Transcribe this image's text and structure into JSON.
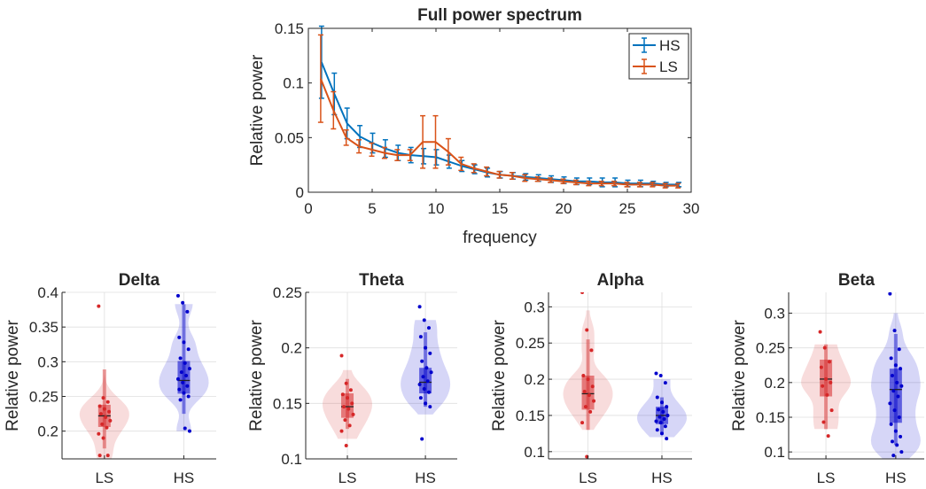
{
  "chart_data": [
    {
      "type": "line",
      "title": "Full power spectrum",
      "xlabel": "frequency",
      "ylabel": "Relative power",
      "xlim": [
        0,
        30
      ],
      "ylim": [
        0,
        0.15
      ],
      "xticks": [
        "0",
        "5",
        "10",
        "15",
        "20",
        "25",
        "30"
      ],
      "yticks": [
        "0",
        "0.05",
        "0.1",
        "0.15"
      ],
      "grid": false,
      "legend": "top-right",
      "x": [
        1,
        2,
        3,
        4,
        5,
        6,
        7,
        8,
        9,
        10,
        11,
        12,
        13,
        14,
        15,
        16,
        17,
        18,
        19,
        20,
        21,
        22,
        23,
        24,
        25,
        26,
        27,
        28,
        29
      ],
      "series": [
        {
          "name": "HS",
          "color": "#0072BD",
          "values": [
            0.119,
            0.09,
            0.063,
            0.051,
            0.045,
            0.04,
            0.036,
            0.034,
            0.033,
            0.032,
            0.028,
            0.024,
            0.021,
            0.018,
            0.016,
            0.015,
            0.014,
            0.013,
            0.012,
            0.011,
            0.01,
            0.01,
            0.009,
            0.009,
            0.008,
            0.008,
            0.008,
            0.007,
            0.007
          ],
          "errors": [
            0.033,
            0.019,
            0.014,
            0.01,
            0.009,
            0.008,
            0.007,
            0.007,
            0.007,
            0.007,
            0.006,
            0.005,
            0.004,
            0.004,
            0.003,
            0.003,
            0.003,
            0.003,
            0.003,
            0.003,
            0.003,
            0.003,
            0.004,
            0.004,
            0.003,
            0.003,
            0.002,
            0.002,
            0.002
          ]
        },
        {
          "name": "LS",
          "color": "#D95319",
          "values": [
            0.104,
            0.075,
            0.05,
            0.042,
            0.039,
            0.036,
            0.034,
            0.034,
            0.046,
            0.046,
            0.037,
            0.026,
            0.022,
            0.019,
            0.016,
            0.015,
            0.013,
            0.012,
            0.011,
            0.01,
            0.009,
            0.008,
            0.008,
            0.008,
            0.007,
            0.007,
            0.007,
            0.006,
            0.006
          ],
          "errors": [
            0.04,
            0.017,
            0.007,
            0.006,
            0.006,
            0.005,
            0.005,
            0.005,
            0.024,
            0.024,
            0.012,
            0.006,
            0.004,
            0.004,
            0.003,
            0.003,
            0.003,
            0.002,
            0.002,
            0.002,
            0.002,
            0.002,
            0.002,
            0.002,
            0.002,
            0.002,
            0.002,
            0.002,
            0.002
          ]
        }
      ]
    },
    {
      "type": "violin",
      "title": "Delta",
      "ylabel": "Relative power",
      "categories": [
        "LS",
        "HS"
      ],
      "ylim": [
        0.16,
        0.4
      ],
      "yticks": [
        "0.2",
        "0.25",
        "0.3",
        "0.35",
        "0.4"
      ],
      "grid": true,
      "groups": [
        {
          "name": "LS",
          "color": "#D62728",
          "median": 0.222,
          "q1": 0.206,
          "q3": 0.238,
          "whisker_low": 0.175,
          "whisker_high": 0.289,
          "kde_low": 0.16,
          "kde_high": 0.29,
          "points": [
            0.38,
            0.248,
            0.242,
            0.236,
            0.232,
            0.228,
            0.225,
            0.22,
            0.215,
            0.21,
            0.205,
            0.196,
            0.19,
            0.165,
            0.165
          ]
        },
        {
          "name": "HS",
          "color": "#0000CC",
          "median": 0.273,
          "q1": 0.254,
          "q3": 0.301,
          "whisker_low": 0.225,
          "whisker_high": 0.383,
          "kde_low": 0.2,
          "kde_high": 0.383,
          "points": [
            0.395,
            0.385,
            0.372,
            0.335,
            0.328,
            0.318,
            0.305,
            0.298,
            0.29,
            0.285,
            0.28,
            0.275,
            0.27,
            0.265,
            0.26,
            0.255,
            0.25,
            0.245,
            0.204,
            0.2
          ]
        }
      ]
    },
    {
      "type": "violin",
      "title": "Theta",
      "ylabel": "Relative power",
      "categories": [
        "LS",
        "HS"
      ],
      "ylim": [
        0.1,
        0.25
      ],
      "yticks": [
        "0.1",
        "0.15",
        "0.2",
        "0.25"
      ],
      "grid": true,
      "groups": [
        {
          "name": "LS",
          "color": "#D62728",
          "median": 0.147,
          "q1": 0.137,
          "q3": 0.159,
          "whisker_low": 0.127,
          "whisker_high": 0.172,
          "kde_low": 0.118,
          "kde_high": 0.18,
          "points": [
            0.193,
            0.168,
            0.162,
            0.158,
            0.155,
            0.15,
            0.147,
            0.145,
            0.14,
            0.135,
            0.13,
            0.125,
            0.112
          ]
        },
        {
          "name": "HS",
          "color": "#0000CC",
          "median": 0.169,
          "q1": 0.159,
          "q3": 0.182,
          "whisker_low": 0.147,
          "whisker_high": 0.214,
          "kde_low": 0.14,
          "kde_high": 0.225,
          "points": [
            0.237,
            0.225,
            0.218,
            0.21,
            0.2,
            0.195,
            0.188,
            0.182,
            0.178,
            0.174,
            0.17,
            0.167,
            0.163,
            0.16,
            0.155,
            0.15,
            0.147,
            0.118
          ]
        }
      ]
    },
    {
      "type": "violin",
      "title": "Alpha",
      "ylabel": "Relative power",
      "categories": [
        "LS",
        "HS"
      ],
      "ylim": [
        0.09,
        0.32
      ],
      "yticks": [
        "0.1",
        "0.15",
        "0.2",
        "0.25",
        "0.3"
      ],
      "grid": true,
      "groups": [
        {
          "name": "LS",
          "color": "#D62728",
          "median": 0.18,
          "q1": 0.158,
          "q3": 0.205,
          "whisker_low": 0.13,
          "whisker_high": 0.255,
          "kde_low": 0.13,
          "kde_high": 0.295,
          "points": [
            0.32,
            0.268,
            0.24,
            0.205,
            0.2,
            0.19,
            0.183,
            0.178,
            0.17,
            0.162,
            0.155,
            0.14,
            0.093
          ]
        },
        {
          "name": "HS",
          "color": "#0000CC",
          "median": 0.15,
          "q1": 0.138,
          "q3": 0.162,
          "whisker_low": 0.125,
          "whisker_high": 0.175,
          "kde_low": 0.12,
          "kde_high": 0.2,
          "points": [
            0.208,
            0.205,
            0.195,
            0.175,
            0.168,
            0.162,
            0.158,
            0.155,
            0.15,
            0.148,
            0.145,
            0.142,
            0.14,
            0.135,
            0.13,
            0.125,
            0.118
          ]
        }
      ]
    },
    {
      "type": "violin",
      "title": "Beta",
      "ylabel": "Relative power",
      "categories": [
        "LS",
        "HS"
      ],
      "ylim": [
        0.09,
        0.33
      ],
      "yticks": [
        "0.1",
        "0.15",
        "0.2",
        "0.25",
        "0.3"
      ],
      "grid": true,
      "groups": [
        {
          "name": "LS",
          "color": "#D62728",
          "median": 0.205,
          "q1": 0.18,
          "q3": 0.233,
          "whisker_low": 0.133,
          "whisker_high": 0.255,
          "kde_low": 0.133,
          "kde_high": 0.255,
          "points": [
            0.273,
            0.25,
            0.23,
            0.222,
            0.205,
            0.2,
            0.195,
            0.182,
            0.16,
            0.143,
            0.123
          ]
        },
        {
          "name": "HS",
          "color": "#0000CC",
          "median": 0.19,
          "q1": 0.142,
          "q3": 0.22,
          "whisker_low": 0.11,
          "whisker_high": 0.27,
          "kde_low": 0.09,
          "kde_high": 0.3,
          "points": [
            0.328,
            0.275,
            0.248,
            0.235,
            0.225,
            0.22,
            0.21,
            0.2,
            0.195,
            0.188,
            0.18,
            0.17,
            0.16,
            0.15,
            0.14,
            0.13,
            0.122,
            0.115,
            0.11,
            0.1,
            0.095
          ]
        }
      ]
    }
  ]
}
